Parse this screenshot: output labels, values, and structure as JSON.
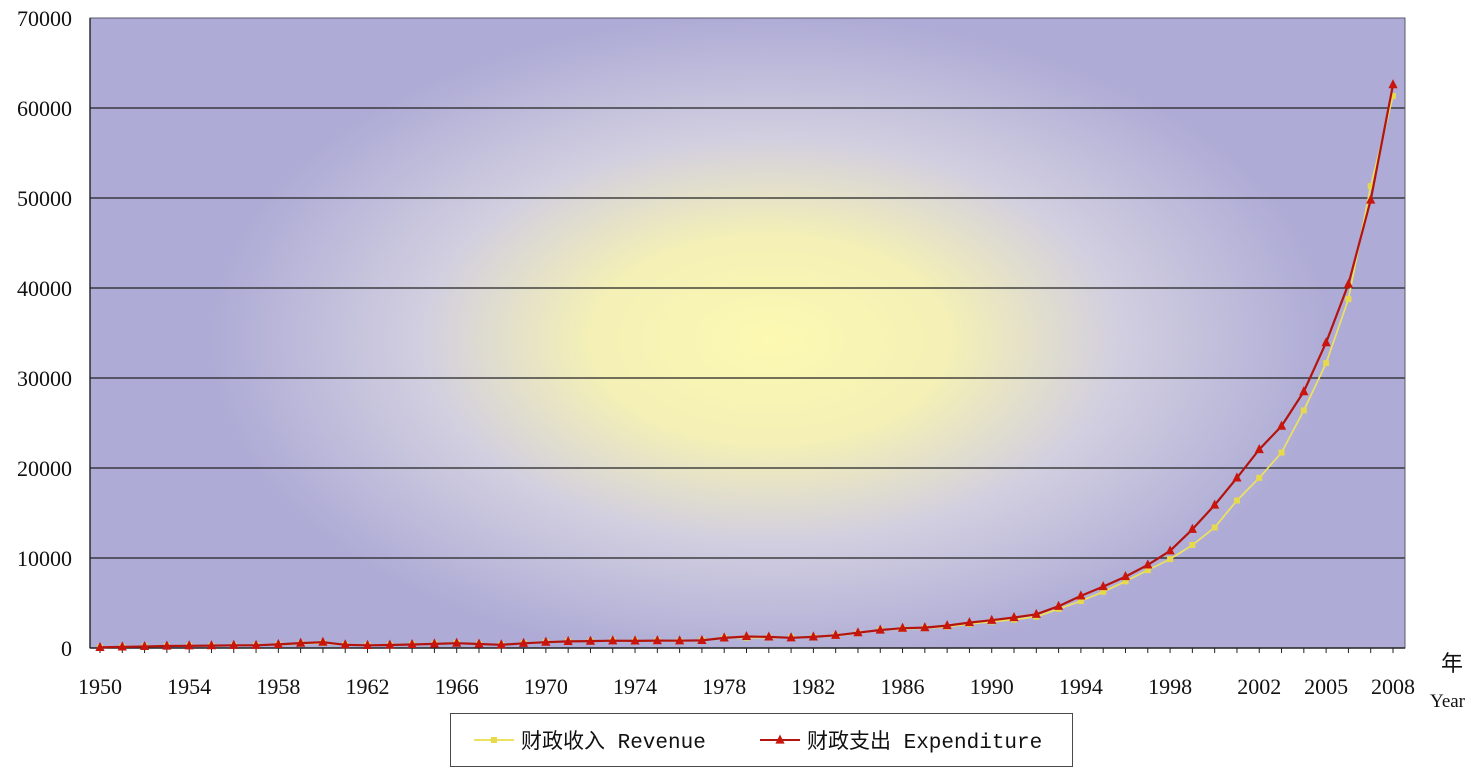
{
  "chart_data": {
    "type": "line",
    "xlabel": "年",
    "xlabel_en": "Year",
    "ylabel": "",
    "xlim": [
      1950,
      2008
    ],
    "ylim": [
      0,
      70000
    ],
    "x_ticks": [
      1950,
      1954,
      1958,
      1962,
      1966,
      1970,
      1974,
      1978,
      1982,
      1986,
      1990,
      1994,
      1998,
      2002,
      2005,
      2008
    ],
    "y_ticks": [
      0,
      10000,
      20000,
      30000,
      40000,
      50000,
      60000,
      70000
    ],
    "grid": true,
    "legend": "bottom",
    "x": [
      1950,
      1951,
      1952,
      1953,
      1954,
      1955,
      1956,
      1957,
      1958,
      1959,
      1960,
      1961,
      1962,
      1963,
      1964,
      1965,
      1966,
      1967,
      1968,
      1969,
      1970,
      1971,
      1972,
      1973,
      1974,
      1975,
      1976,
      1977,
      1978,
      1979,
      1980,
      1981,
      1982,
      1983,
      1984,
      1985,
      1986,
      1987,
      1988,
      1989,
      1990,
      1991,
      1992,
      1993,
      1994,
      1995,
      1996,
      1997,
      1998,
      1999,
      2000,
      2001,
      2002,
      2003,
      2004,
      2005,
      2006,
      2007,
      2008
    ],
    "series": [
      {
        "name": "财政收入 Revenue",
        "color": "#ece25e",
        "marker": "square",
        "values": [
          62,
          125,
          174,
          213,
          245,
          249,
          280,
          303,
          380,
          487,
          572,
          356,
          314,
          342,
          400,
          473,
          559,
          419,
          361,
          527,
          663,
          745,
          767,
          810,
          783,
          816,
          777,
          874,
          1132,
          1146,
          1160,
          1176,
          1212,
          1367,
          1643,
          2005,
          2122,
          2199,
          2357,
          2665,
          2937,
          3149,
          3483,
          4349,
          5218,
          6242,
          7408,
          8651,
          9876,
          11444,
          13395,
          16386,
          18904,
          21715,
          26396,
          31649,
          38760,
          51322,
          61330
        ]
      },
      {
        "name": "财政支出 Expenditure",
        "color": "#b3140f",
        "marker": "triangle",
        "values": [
          68,
          122,
          172,
          219,
          244,
          263,
          299,
          296,
          400,
          543,
          644,
          356,
          295,
          332,
          394,
          460,
          538,
          440,
          358,
          526,
          649,
          732,
          766,
          809,
          790,
          821,
          806,
          844,
          1122,
          1282,
          1229,
          1138,
          1230,
          1410,
          1701,
          2004,
          2205,
          2262,
          2491,
          2824,
          3084,
          3387,
          3742,
          4642,
          5793,
          6824,
          7938,
          9234,
          10798,
          13188,
          15887,
          18903,
          22053,
          24650,
          28487,
          33930,
          40423,
          49781,
          62593
        ]
      }
    ]
  }
}
